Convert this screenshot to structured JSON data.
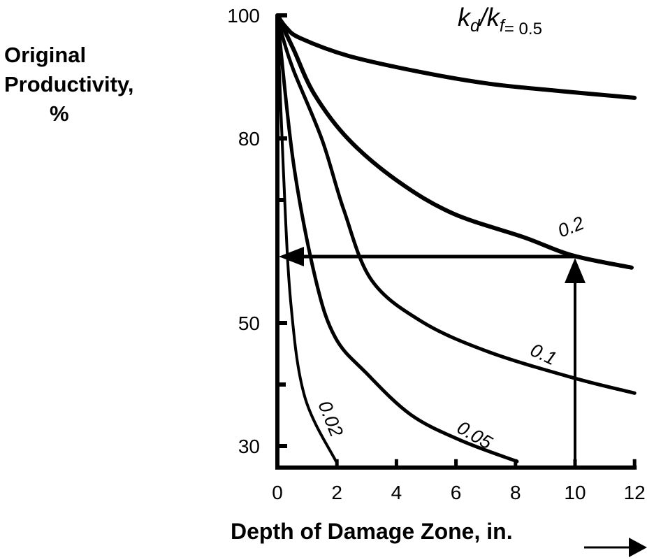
{
  "chart_data": {
    "type": "line",
    "title": {
      "k_d": "k",
      "d_sub": "d",
      "slash": "/",
      "k_f": "k",
      "f_sub": "f",
      "eq": "= 0.5"
    },
    "ylabel": [
      "Original",
      "Productivity,",
      "%"
    ],
    "xlabel": "Depth of Damage Zone, in.",
    "xlim": [
      0,
      12
    ],
    "ylim": [
      26.5,
      100
    ],
    "x_ticks": [
      "0",
      "2",
      "4",
      "6",
      "8",
      "10",
      "12"
    ],
    "y_ticks": [
      "100",
      "80",
      "50",
      "30"
    ],
    "y_minor_ticks": [
      70,
      40
    ],
    "grid": false,
    "legend": "none",
    "series": [
      {
        "name": "0.5",
        "x": [
          0,
          0.3,
          0.77,
          2.4,
          4.8,
          7.1,
          9.5,
          12
        ],
        "y": [
          100,
          98,
          96.3,
          93.4,
          90.8,
          88.9,
          87.7,
          86.6
        ]
      },
      {
        "name": "0.2",
        "x": [
          0,
          0.54,
          1.24,
          2.4,
          4.06,
          5.9,
          8.3,
          9.9,
          11.9
        ],
        "y": [
          100,
          94.5,
          87.2,
          79.8,
          73,
          67.8,
          63.9,
          61,
          59
        ]
      },
      {
        "name": "0.1",
        "x": [
          0,
          0.16,
          0.54,
          1.5,
          2.23,
          3.16,
          4.86,
          7.1,
          9.93,
          12
        ],
        "y": [
          100,
          96.8,
          91.1,
          79.8,
          68.4,
          57,
          50.2,
          45.3,
          41.1,
          38.6
        ]
      },
      {
        "name": "0.05",
        "x": [
          0,
          0.54,
          1.29,
          1.95,
          2.98,
          4.48,
          6.17,
          8.05
        ],
        "y": [
          100,
          76,
          57,
          47.6,
          41.9,
          35.1,
          30.9,
          27.5
        ]
      },
      {
        "name": "0.02",
        "x": [
          0,
          0.2,
          0.45,
          0.92,
          1.97
        ],
        "y": [
          100,
          75,
          53.3,
          38,
          27.5
        ]
      }
    ],
    "annotation": {
      "x": 10,
      "y": 60.8,
      "description_arrows": "vertical arrow from x-axis at 10 up to 0.2 curve, horizontal arrow to y-axis"
    }
  }
}
